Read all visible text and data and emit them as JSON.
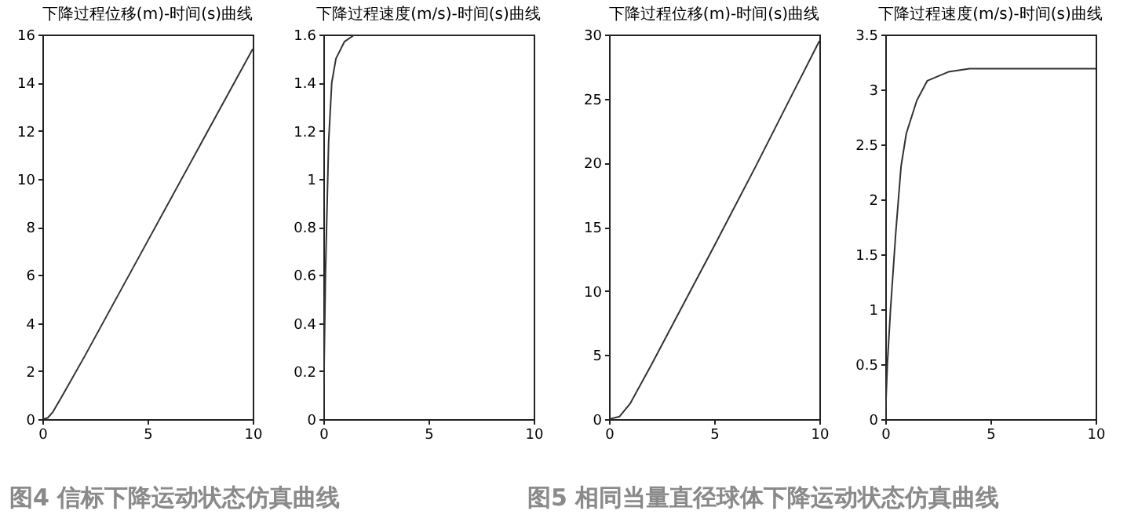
{
  "chart_data": [
    {
      "type": "line",
      "title": "下降过程位移(m)-时间(s)曲线",
      "annotations": [
        "图4  信标下降运动状态仿真曲线"
      ],
      "xlim": [
        0,
        10
      ],
      "xticks": [
        0,
        5,
        10
      ],
      "ylim": [
        0,
        16
      ],
      "yticks": [
        0,
        2,
        4,
        6,
        8,
        10,
        12,
        14,
        16
      ],
      "grid": false,
      "series": [
        {
          "color": "#333333",
          "x": [
            0,
            0.25,
            0.5,
            1,
            2,
            3,
            5,
            7,
            10
          ],
          "values": [
            0,
            0.05,
            0.3,
            1.05,
            2.6,
            4.2,
            7.4,
            10.6,
            15.4
          ]
        }
      ]
    },
    {
      "type": "line",
      "title": "下降过程速度(m/s)-时间(s)曲线",
      "xlim": [
        0,
        10
      ],
      "xticks": [
        0,
        5,
        10
      ],
      "ylim": [
        0,
        1.6
      ],
      "yticks": [
        0,
        0.2,
        0.4,
        0.6,
        0.8,
        1,
        1.2,
        1.4,
        1.6
      ],
      "grid": false,
      "series": [
        {
          "color": "#333333",
          "x": [
            0,
            0.1,
            0.25,
            0.4,
            0.6,
            1,
            1.5,
            10
          ],
          "values": [
            0,
            0.6,
            1.15,
            1.4,
            1.5,
            1.57,
            1.6,
            1.6
          ]
        }
      ]
    },
    {
      "type": "line",
      "title": "下降过程位移(m)-时间(s)曲线",
      "annotations": [
        "图5  相同当量直径球体下降运动状态仿真曲线"
      ],
      "xlim": [
        0,
        10
      ],
      "xticks": [
        0,
        5,
        10
      ],
      "ylim": [
        0,
        30
      ],
      "yticks": [
        0,
        5,
        10,
        15,
        20,
        25,
        30
      ],
      "grid": false,
      "series": [
        {
          "color": "#333333",
          "x": [
            0,
            0.5,
            1,
            2,
            3,
            5,
            7,
            10
          ],
          "values": [
            0,
            0.2,
            1.2,
            4.2,
            7.3,
            13.5,
            19.8,
            29.5
          ]
        }
      ]
    },
    {
      "type": "line",
      "title": "下降过程速度(m/s)-时间(s)曲线",
      "xlim": [
        0,
        10
      ],
      "xticks": [
        0,
        5,
        10
      ],
      "ylim": [
        0,
        3.5
      ],
      "yticks": [
        0,
        0.5,
        1,
        1.5,
        2,
        2.5,
        3,
        3.5
      ],
      "grid": false,
      "series": [
        {
          "color": "#333333",
          "x": [
            0,
            0.1,
            0.25,
            0.5,
            0.75,
            1,
            1.5,
            2,
            3,
            4,
            10
          ],
          "values": [
            0,
            0.5,
            1,
            1.7,
            2.3,
            2.6,
            2.9,
            3.08,
            3.16,
            3.19,
            3.19
          ]
        }
      ]
    }
  ]
}
